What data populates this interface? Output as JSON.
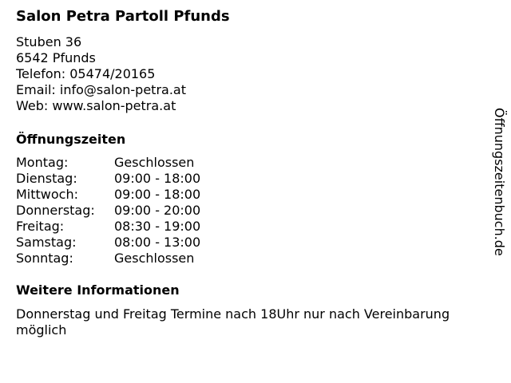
{
  "title": "Salon Petra Partoll Pfunds",
  "contact": [
    "Stuben 36",
    "6542 Pfunds",
    "Telefon: 05474/20165",
    "Email: info@salon-petra.at",
    "Web: www.salon-petra.at"
  ],
  "hours_heading": "Öffnungszeiten",
  "hours": [
    {
      "day": "Montag:",
      "time": "Geschlossen"
    },
    {
      "day": "Dienstag:",
      "time": "09:00 - 18:00"
    },
    {
      "day": "Mittwoch:",
      "time": "09:00 - 18:00"
    },
    {
      "day": "Donnerstag:",
      "time": "09:00 - 20:00"
    },
    {
      "day": "Freitag:",
      "time": "08:30 - 19:00"
    },
    {
      "day": "Samstag:",
      "time": "08:00 - 13:00"
    },
    {
      "day": "Sonntag:",
      "time": "Geschlossen"
    }
  ],
  "info_heading": "Weitere Informationen",
  "info_text": "Donnerstag und Freitag Termine nach 18Uhr nur nach Vereinbarung möglich",
  "side_brand": "Öffnungszeitenbuch.de"
}
